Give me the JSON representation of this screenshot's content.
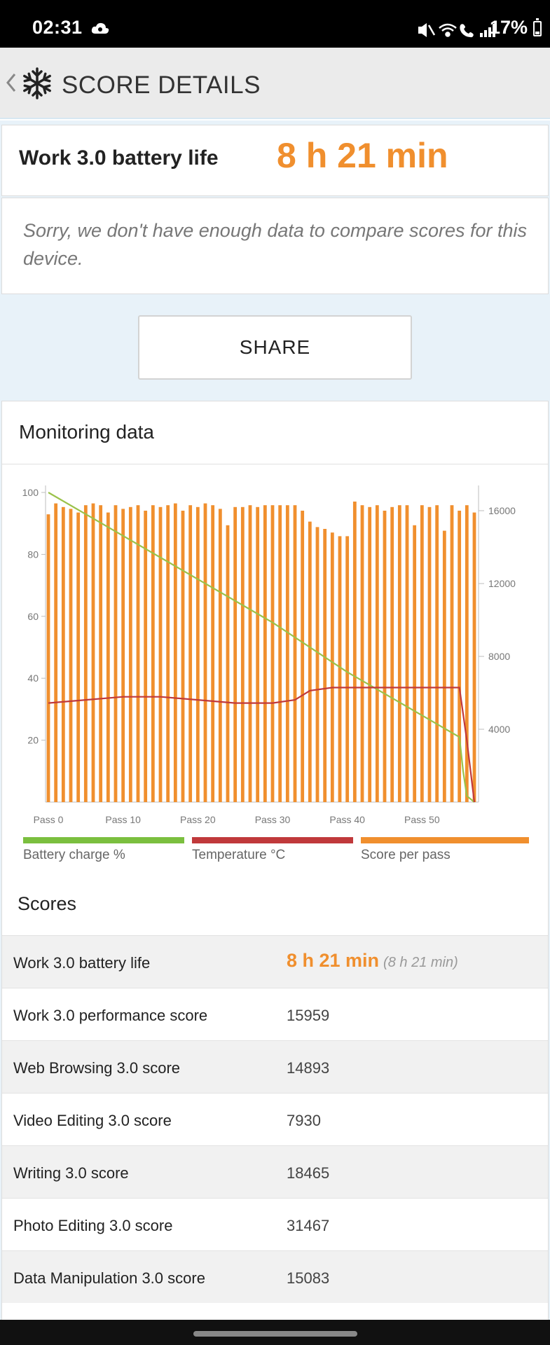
{
  "status_bar": {
    "time": "02:31",
    "battery": "17%",
    "icons": [
      "cloud-icon",
      "mute-icon",
      "wifi-icon",
      "call-icon",
      "signal-icon",
      "battery-icon"
    ]
  },
  "header": {
    "title": "SCORE DETAILS",
    "icons": [
      "back-chevron-icon",
      "snowflake-icon"
    ]
  },
  "result": {
    "label": "Work 3.0 battery life",
    "value": "8 h 21 min"
  },
  "note": {
    "text": "Sorry, we don't have enough data to compare scores for this device."
  },
  "share": {
    "label": "SHARE"
  },
  "monitoring": {
    "title": "Monitoring data",
    "legend": [
      {
        "label": "Battery charge %",
        "color": "#7bbf3f"
      },
      {
        "label": "Temperature °C",
        "color": "#c0393b"
      },
      {
        "label": "Score per pass",
        "color": "#f08f2e"
      }
    ]
  },
  "chart_data": {
    "type": "bar",
    "x_tick_labels": [
      "Pass 0",
      "Pass 10",
      "Pass 20",
      "Pass 30",
      "Pass 40",
      "Pass 50"
    ],
    "y_left_ticks": [
      20,
      40,
      60,
      80,
      100
    ],
    "y_left_range": [
      0,
      100
    ],
    "y_right_ticks": [
      4000,
      8000,
      12000,
      16000
    ],
    "y_right_range": [
      0,
      17000
    ],
    "series": [
      {
        "name": "Score per pass",
        "axis": "right",
        "values": [
          15800,
          16400,
          16200,
          16100,
          15900,
          16300,
          16400,
          16300,
          15900,
          16300,
          16100,
          16200,
          16300,
          16000,
          16300,
          16200,
          16300,
          16400,
          16000,
          16300,
          16200,
          16400,
          16300,
          16100,
          15200,
          16200,
          16200,
          16300,
          16200,
          16300,
          16300,
          16300,
          16300,
          16300,
          16000,
          15400,
          15100,
          15000,
          14800,
          14600,
          14600,
          16500,
          16300,
          16200,
          16300,
          16000,
          16200,
          16300,
          16300,
          15200,
          16300,
          16200,
          16300,
          14900,
          16300,
          16000,
          16300,
          15900
        ]
      },
      {
        "name": "Battery charge %",
        "axis": "left",
        "x": [
          0,
          10,
          20,
          30,
          40,
          45,
          50,
          55,
          55.5,
          56,
          57
        ],
        "values": [
          100,
          86,
          72,
          58,
          42,
          35,
          28,
          21,
          10,
          2,
          0
        ]
      },
      {
        "name": "Temperature °C",
        "axis": "left",
        "x": [
          0,
          5,
          10,
          15,
          20,
          25,
          30,
          33,
          35,
          38,
          40,
          45,
          50,
          54,
          55,
          56,
          57
        ],
        "values": [
          32,
          33,
          34,
          34,
          33,
          32,
          32,
          33,
          36,
          37,
          37,
          37,
          37,
          37,
          37,
          20,
          0
        ]
      }
    ],
    "grid": false,
    "legend_position": "bottom"
  },
  "scores": {
    "title": "Scores",
    "rows": [
      {
        "name": "Work 3.0 battery life",
        "value": "8 h 21 min",
        "sub": "(8 h 21 min)"
      },
      {
        "name": "Work 3.0 performance score",
        "value": "15959",
        "sub": ""
      },
      {
        "name": "Web Browsing 3.0 score",
        "value": "14893",
        "sub": ""
      },
      {
        "name": "Video Editing 3.0 score",
        "value": "7930",
        "sub": ""
      },
      {
        "name": "Writing 3.0 score",
        "value": "18465",
        "sub": ""
      },
      {
        "name": "Photo Editing 3.0 score",
        "value": "31467",
        "sub": ""
      },
      {
        "name": "Data Manipulation 3.0 score",
        "value": "15083",
        "sub": ""
      }
    ]
  }
}
